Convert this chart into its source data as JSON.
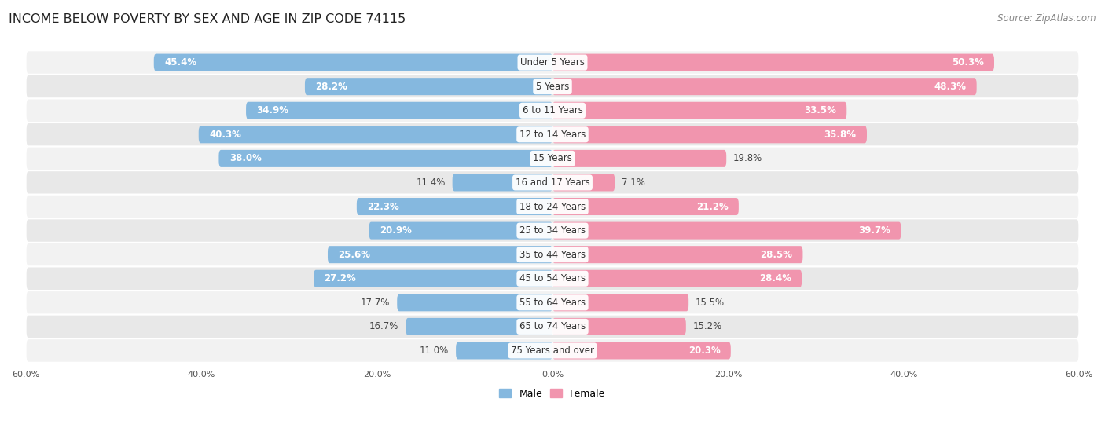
{
  "title": "INCOME BELOW POVERTY BY SEX AND AGE IN ZIP CODE 74115",
  "source": "Source: ZipAtlas.com",
  "categories": [
    "Under 5 Years",
    "5 Years",
    "6 to 11 Years",
    "12 to 14 Years",
    "15 Years",
    "16 and 17 Years",
    "18 to 24 Years",
    "25 to 34 Years",
    "35 to 44 Years",
    "45 to 54 Years",
    "55 to 64 Years",
    "65 to 74 Years",
    "75 Years and over"
  ],
  "male": [
    45.4,
    28.2,
    34.9,
    40.3,
    38.0,
    11.4,
    22.3,
    20.9,
    25.6,
    27.2,
    17.7,
    16.7,
    11.0
  ],
  "female": [
    50.3,
    48.3,
    33.5,
    35.8,
    19.8,
    7.1,
    21.2,
    39.7,
    28.5,
    28.4,
    15.5,
    15.2,
    20.3
  ],
  "male_color": "#85b8df",
  "female_color": "#f195ae",
  "male_label": "Male",
  "female_label": "Female",
  "axis_max": 60.0,
  "row_bg_colors": [
    "#f2f2f2",
    "#e8e8e8"
  ],
  "title_fontsize": 11.5,
  "source_fontsize": 8.5,
  "label_fontsize": 8.5,
  "category_fontsize": 8.5,
  "inside_label_threshold": 20
}
